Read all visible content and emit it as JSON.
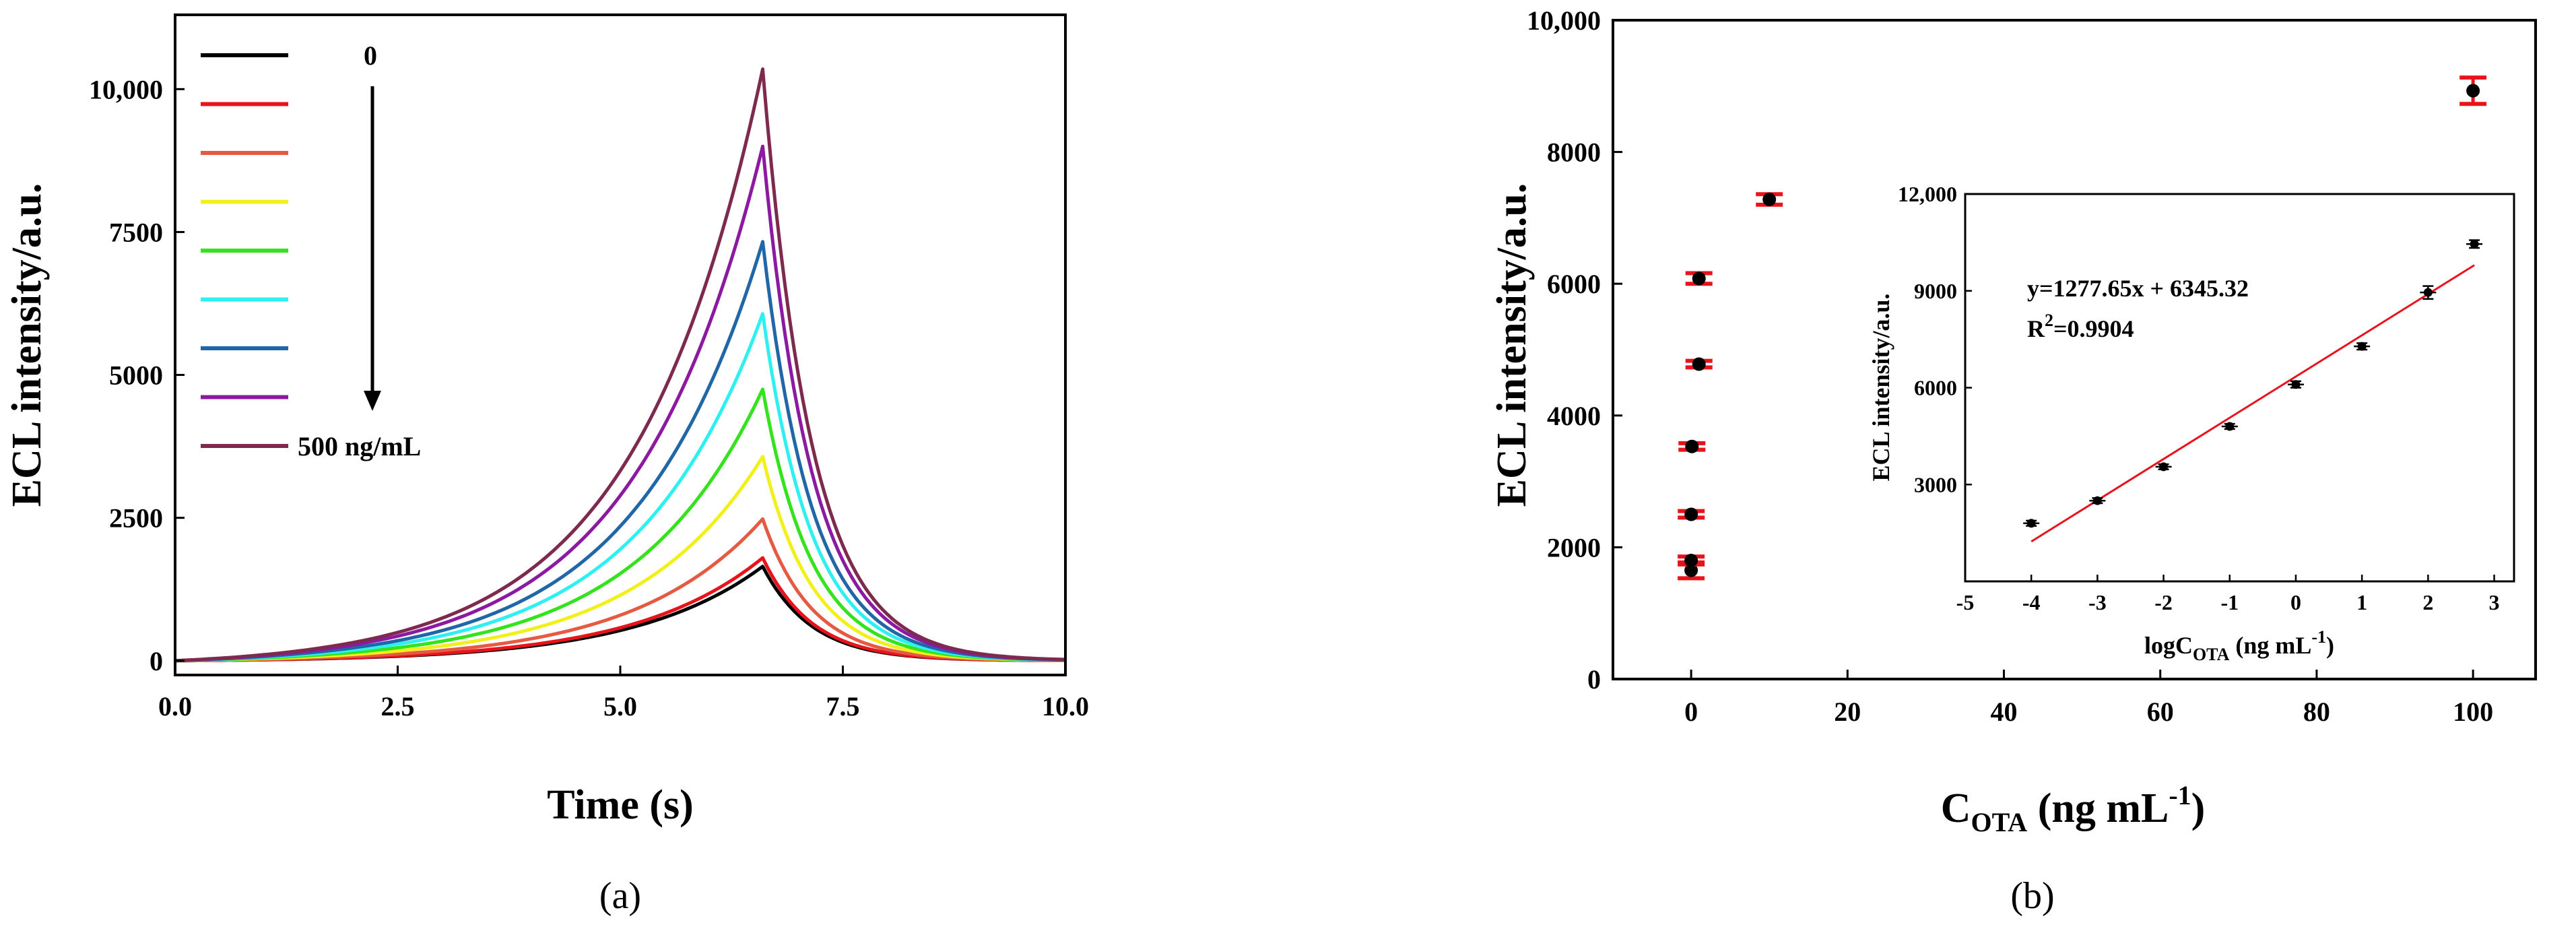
{
  "chart_data": [
    {
      "panel": "(a)",
      "type": "line",
      "xlabel": "Time (s)",
      "ylabel": "ECL intensity/a.u.",
      "xlim": [
        0,
        10
      ],
      "ylim": [
        -250,
        11300
      ],
      "xticks": [
        "0.0",
        "2.5",
        "5.0",
        "7.5",
        "10.0"
      ],
      "yticks": [
        "0",
        "2500",
        "5000",
        "7500",
        "10,000"
      ],
      "legend_labels": [
        "0",
        "",
        "",
        "",
        "",
        "",
        "",
        "",
        "500 ng/mL"
      ],
      "peak_time": 6.6,
      "series": [
        {
          "color": "#000000",
          "peak": 1650
        },
        {
          "color": "#e8141b",
          "peak": 1800
        },
        {
          "color": "#e55a42",
          "peak": 2480
        },
        {
          "color": "#f1f01a",
          "peak": 3570
        },
        {
          "color": "#34e31e",
          "peak": 4750
        },
        {
          "color": "#2ff0f0",
          "peak": 6070
        },
        {
          "color": "#2167a8",
          "peak": 7330
        },
        {
          "color": "#8b1aa0",
          "peak": 9000
        },
        {
          "color": "#7d2a4e",
          "peak": 10350
        }
      ],
      "grid": false
    },
    {
      "panel": "(b)",
      "type": "scatter",
      "xlabel_main": "C",
      "xlabel_sub": "OTA",
      "xlabel_rest": " (ng mL",
      "xlabel_sup": "-1",
      "xlabel_end": ")",
      "ylabel": "ECL intensity/a.u.",
      "xlim": [
        -10,
        108
      ],
      "ylim": [
        0,
        10000
      ],
      "xticks": [
        "0",
        "20",
        "40",
        "60",
        "80",
        "100"
      ],
      "yticks": [
        "0",
        "2000",
        "4000",
        "6000",
        "8000",
        "10,000"
      ],
      "points": [
        {
          "x": 0.0001,
          "y": 1650,
          "err": 120
        },
        {
          "x": 0.001,
          "y": 1800,
          "err": 60
        },
        {
          "x": 0.01,
          "y": 2500,
          "err": 50
        },
        {
          "x": 0.1,
          "y": 3530,
          "err": 50
        },
        {
          "x": 1,
          "y": 4780,
          "err": 50
        },
        {
          "x": 1,
          "y": 6080,
          "err": 80
        },
        {
          "x": 10,
          "y": 7280,
          "err": 80
        },
        {
          "x": 100,
          "y": 8930,
          "err": 200
        }
      ],
      "inset": {
        "type": "scatter",
        "xlabel_main": "logC",
        "xlabel_sub": "OTA",
        "xlabel_rest": " (ng mL",
        "xlabel_sup": "-1",
        "xlabel_end": ")",
        "ylabel": "ECL intensity/a.u.",
        "xlim": [
          -5,
          3.3
        ],
        "ylim": [
          0,
          12000
        ],
        "xticks": [
          "-5",
          "-4",
          "-3",
          "-2",
          "-1",
          "0",
          "1",
          "2",
          "3"
        ],
        "yticks": [
          "3000",
          "6000",
          "9000",
          "12,000"
        ],
        "points": [
          {
            "x": -4,
            "y": 1800,
            "err": 80
          },
          {
            "x": -3,
            "y": 2500,
            "err": 80
          },
          {
            "x": -2,
            "y": 3550,
            "err": 80
          },
          {
            "x": -1,
            "y": 4800,
            "err": 80
          },
          {
            "x": 0,
            "y": 6100,
            "err": 100
          },
          {
            "x": 1,
            "y": 7280,
            "err": 100
          },
          {
            "x": 2,
            "y": 8950,
            "err": 200
          },
          {
            "x": 2.7,
            "y": 10450,
            "err": 120
          }
        ],
        "fit": {
          "slope": 1277.65,
          "intercept": 6345.32,
          "x_range": [
            -4,
            2.7
          ],
          "color": "#e8141b"
        },
        "equation": "y=1277.65x + 6345.32",
        "r2_main": "R",
        "r2_sup": "2",
        "r2_rest": "=0.9904"
      }
    }
  ]
}
